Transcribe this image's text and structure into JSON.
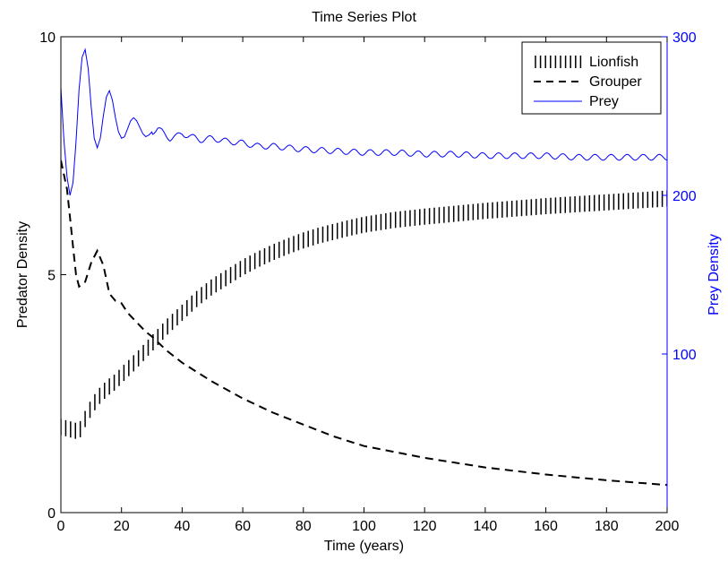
{
  "chart_data": {
    "type": "line",
    "title": "Time Series Plot",
    "xlabel": "Time (years)",
    "ylabel_left": "Predator Density",
    "ylabel_right": "Prey Density",
    "xlim": [
      0,
      200
    ],
    "ylim_left": [
      0,
      10
    ],
    "ylim_right": [
      0,
      300
    ],
    "x_ticks": [
      0,
      20,
      40,
      60,
      80,
      100,
      120,
      140,
      160,
      180,
      200
    ],
    "x_tick_labels": [
      "0",
      "20",
      "40",
      "60",
      "80",
      "100",
      "120",
      "140",
      "160",
      "180",
      "200"
    ],
    "y_left_ticks": [
      0,
      5,
      10
    ],
    "y_left_tick_labels": [
      "0",
      "5",
      "10"
    ],
    "y_right_ticks": [
      100,
      200,
      300
    ],
    "y_right_tick_labels": [
      "100",
      "200",
      "300"
    ],
    "grid": false,
    "legend_position": "top-right",
    "colors": {
      "axes": "#000000",
      "prey": "#0000ff",
      "predators": "#000000"
    },
    "series": [
      {
        "name": "Lionfish",
        "axis": "left",
        "style": "dotted-vertical",
        "x": [
          0,
          3,
          6,
          9,
          12,
          15,
          18,
          21,
          25,
          30,
          35,
          40,
          45,
          50,
          55,
          60,
          65,
          70,
          75,
          80,
          85,
          90,
          95,
          100,
          110,
          120,
          130,
          140,
          150,
          160,
          170,
          180,
          190,
          200
        ],
        "y": [
          1.8,
          1.75,
          1.7,
          2.1,
          2.4,
          2.6,
          2.75,
          2.95,
          3.2,
          3.55,
          3.9,
          4.2,
          4.5,
          4.75,
          4.95,
          5.15,
          5.32,
          5.47,
          5.6,
          5.72,
          5.82,
          5.9,
          5.98,
          6.05,
          6.15,
          6.22,
          6.28,
          6.34,
          6.39,
          6.44,
          6.48,
          6.52,
          6.56,
          6.6
        ]
      },
      {
        "name": "Grouper",
        "axis": "left",
        "style": "dashed",
        "x": [
          0,
          2,
          3,
          4,
          5,
          6,
          8,
          10,
          12,
          14,
          16,
          18,
          20,
          22,
          25,
          28,
          30,
          35,
          40,
          45,
          50,
          60,
          70,
          80,
          90,
          100,
          120,
          140,
          160,
          180,
          200
        ],
        "y": [
          7.4,
          6.8,
          6.2,
          5.6,
          5.0,
          4.75,
          4.85,
          5.25,
          5.5,
          5.2,
          4.6,
          4.45,
          4.4,
          4.2,
          4.0,
          3.8,
          3.7,
          3.4,
          3.15,
          2.95,
          2.75,
          2.4,
          2.1,
          1.85,
          1.6,
          1.4,
          1.15,
          0.95,
          0.8,
          0.68,
          0.58
        ]
      },
      {
        "name": "Prey",
        "axis": "right",
        "style": "solid",
        "x": [
          0,
          1,
          2,
          3,
          4,
          5,
          6,
          7,
          8,
          9,
          10,
          11,
          12,
          13,
          14,
          15,
          16,
          17,
          18,
          19,
          20,
          21,
          22,
          23,
          24,
          25,
          26,
          27,
          28,
          29,
          30,
          32,
          34,
          36,
          38,
          40,
          43,
          46,
          50,
          55,
          60,
          65,
          70,
          75,
          80,
          90,
          100,
          110,
          120,
          130,
          140,
          150,
          160,
          170,
          180,
          190,
          200
        ],
        "y": [
          268,
          235,
          212,
          200,
          208,
          234,
          267,
          287,
          292,
          280,
          256,
          236,
          230,
          236,
          250,
          262,
          266,
          260,
          249,
          240,
          236,
          237,
          242,
          247,
          249,
          247,
          243,
          239,
          237,
          238,
          240,
          242,
          239,
          236,
          237,
          239,
          237,
          235,
          236,
          234,
          233,
          231,
          231,
          230,
          229,
          228,
          227,
          227,
          226,
          226,
          225,
          225,
          225,
          224,
          224,
          224,
          224
        ]
      }
    ]
  }
}
